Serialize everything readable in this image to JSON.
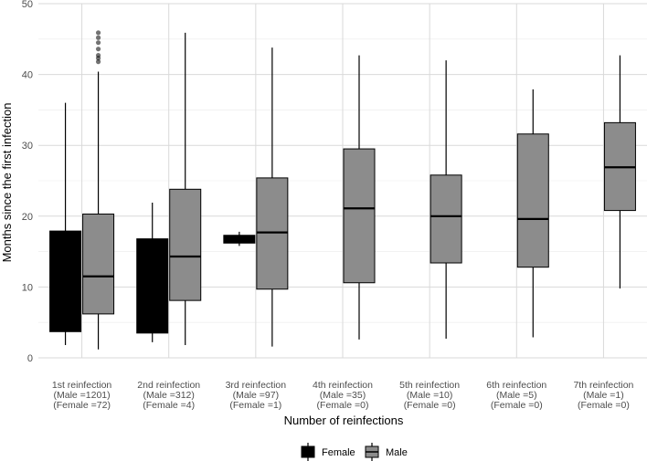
{
  "chart_data": {
    "type": "boxplot",
    "title": "",
    "xlabel": "Number of reinfections",
    "ylabel": "Months since the first infection",
    "ylim": [
      0,
      50
    ],
    "y_ticks": [
      0,
      10,
      20,
      30,
      40,
      50
    ],
    "grid": true,
    "legend_position": "bottom",
    "categories": [
      {
        "label": "1st reinfection",
        "male_n": "(Male =1201)",
        "female_n": "(Female =72)"
      },
      {
        "label": "2nd reinfection",
        "male_n": "(Male =312)",
        "female_n": "(Female =4)"
      },
      {
        "label": "3rd reinfection",
        "male_n": "(Male =97)",
        "female_n": "(Female =1)"
      },
      {
        "label": "4th reinfection",
        "male_n": "(Male =35)",
        "female_n": "(Female =0)"
      },
      {
        "label": "5th reinfection",
        "male_n": "(Male =10)",
        "female_n": "(Female =0)"
      },
      {
        "label": "6th reinfection",
        "male_n": "(Male =5)",
        "female_n": "(Female =0)"
      },
      {
        "label": "7th reinfection",
        "male_n": "(Male =1)",
        "female_n": "(Female =0)"
      }
    ],
    "series": [
      {
        "name": "Female",
        "color": "#000000",
        "boxes": [
          {
            "category": 0,
            "min": 1.8,
            "q1": 3.7,
            "median": 7.8,
            "q3": 17.9,
            "max": 36.0,
            "outliers": []
          },
          {
            "category": 1,
            "min": 2.2,
            "q1": 3.5,
            "median": 12.6,
            "q3": 16.8,
            "max": 21.9,
            "outliers": []
          },
          {
            "category": 2,
            "min": 15.8,
            "q1": 16.2,
            "median": 16.8,
            "q3": 17.3,
            "max": 17.8,
            "outliers": []
          }
        ]
      },
      {
        "name": "Male",
        "color": "#8c8c8c",
        "boxes": [
          {
            "category": 0,
            "min": 1.2,
            "q1": 6.2,
            "median": 11.5,
            "q3": 20.3,
            "max": 40.4,
            "outliers": [
              41.8,
              42.3,
              42.7,
              43.6,
              44.5,
              45.2,
              45.9
            ]
          },
          {
            "category": 1,
            "min": 1.8,
            "q1": 8.1,
            "median": 14.3,
            "q3": 23.8,
            "max": 45.9,
            "outliers": []
          },
          {
            "category": 2,
            "min": 1.6,
            "q1": 9.7,
            "median": 17.7,
            "q3": 25.4,
            "max": 43.8,
            "outliers": []
          },
          {
            "category": 3,
            "min": 2.6,
            "q1": 10.6,
            "median": 21.1,
            "q3": 29.5,
            "max": 42.7,
            "outliers": []
          },
          {
            "category": 4,
            "min": 2.7,
            "q1": 13.4,
            "median": 20.0,
            "q3": 25.8,
            "max": 42.0,
            "outliers": []
          },
          {
            "category": 5,
            "min": 2.9,
            "q1": 12.8,
            "median": 19.6,
            "q3": 31.6,
            "max": 37.9,
            "outliers": []
          },
          {
            "category": 6,
            "min": 9.8,
            "q1": 20.8,
            "median": 26.9,
            "q3": 33.2,
            "max": 42.7,
            "outliers": []
          }
        ]
      }
    ],
    "legend": [
      {
        "name": "Female",
        "color": "#000000"
      },
      {
        "name": "Male",
        "color": "#8c8c8c"
      }
    ]
  }
}
